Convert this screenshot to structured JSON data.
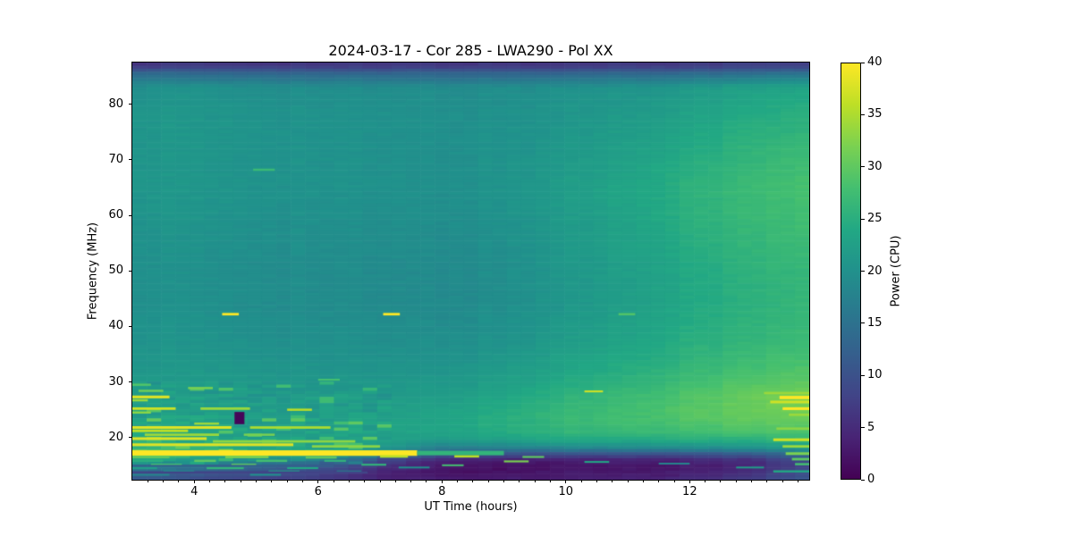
{
  "chart_data": {
    "type": "heatmap",
    "title": "2024-03-17 - Cor 285 - LWA290 - Pol XX",
    "xlabel": "UT Time (hours)",
    "ylabel": "Frequency (MHz)",
    "colorbar_label": "Power (CPU)",
    "x_range": [
      3.0,
      13.93
    ],
    "y_range": [
      12.4,
      87.5
    ],
    "clim": [
      0,
      40
    ],
    "x_ticks": [
      4,
      6,
      8,
      10,
      12
    ],
    "x_minor_step": 0.25,
    "y_ticks": [
      20,
      30,
      40,
      50,
      60,
      70,
      80
    ],
    "colorbar_ticks": [
      0,
      5,
      10,
      15,
      20,
      25,
      30,
      35,
      40
    ],
    "colormap": "viridis",
    "colormap_stops": [
      {
        "v": 0.0,
        "c": "#440154"
      },
      {
        "v": 0.1,
        "c": "#482475"
      },
      {
        "v": 0.2,
        "c": "#414487"
      },
      {
        "v": 0.3,
        "c": "#355f8d"
      },
      {
        "v": 0.4,
        "c": "#2a788e"
      },
      {
        "v": 0.5,
        "c": "#21918c"
      },
      {
        "v": 0.6,
        "c": "#22a884"
      },
      {
        "v": 0.7,
        "c": "#44bf70"
      },
      {
        "v": 0.8,
        "c": "#7ad151"
      },
      {
        "v": 0.9,
        "c": "#bddf26"
      },
      {
        "v": 1.0,
        "c": "#fde725"
      }
    ],
    "grid": {
      "times": [
        3,
        3.5,
        4,
        5,
        6,
        7,
        8,
        9,
        10,
        11,
        12,
        13,
        13.93
      ],
      "freqs": [
        87.6,
        86.8,
        85.5,
        83,
        78,
        72,
        65,
        58,
        50,
        44,
        38,
        33,
        30,
        27.5,
        25,
        23,
        21,
        19.5,
        18,
        17,
        16,
        15.2,
        14.3,
        13.5,
        12.4
      ],
      "power": [
        [
          6,
          6,
          6,
          6,
          6,
          6,
          6,
          6,
          6,
          6.5,
          6.5,
          7,
          7
        ],
        [
          7,
          7,
          7,
          7,
          7,
          7,
          7,
          7,
          7,
          7.5,
          7.5,
          8,
          8
        ],
        [
          14,
          14,
          13.5,
          13.5,
          13,
          13,
          13,
          13,
          13,
          13.5,
          14,
          14.5,
          15
        ],
        [
          20,
          20,
          20,
          19.8,
          19.5,
          19.3,
          19.3,
          19.5,
          20,
          20.5,
          21.5,
          22.5,
          23.5
        ],
        [
          21,
          21,
          20.8,
          20.5,
          20.2,
          20,
          19.8,
          20,
          20.8,
          21.5,
          23,
          24.2,
          25.2
        ],
        [
          21,
          21,
          20.8,
          20.5,
          20.2,
          20,
          19.8,
          20.2,
          21.2,
          22.5,
          24.2,
          25.8,
          27
        ],
        [
          21,
          21,
          20.8,
          20.5,
          20.2,
          20,
          19.8,
          20.5,
          22,
          23.5,
          25.5,
          27,
          28.2
        ],
        [
          20.5,
          20.5,
          20.3,
          20,
          19.8,
          19.5,
          19.4,
          20,
          21.5,
          23,
          25,
          26.5,
          27.6
        ],
        [
          20,
          20,
          19.8,
          19.5,
          19.3,
          19,
          19,
          19.5,
          21,
          22.3,
          24,
          25.5,
          26.5
        ],
        [
          20,
          20,
          19.8,
          19.5,
          19.3,
          19,
          19,
          19.5,
          21,
          22.3,
          24,
          25.3,
          26.3
        ],
        [
          20.5,
          20.5,
          20.3,
          20,
          19.8,
          19.5,
          19.5,
          20.2,
          21.8,
          23,
          24.8,
          26,
          27
        ],
        [
          21,
          21,
          21,
          20.8,
          20.5,
          20.3,
          20.5,
          21.5,
          23,
          24.5,
          26.2,
          27.5,
          28.5
        ],
        [
          21.5,
          21.5,
          21.5,
          21.3,
          21,
          21,
          21.2,
          22.5,
          24.2,
          25.8,
          27.5,
          29,
          30
        ],
        [
          22,
          22,
          22,
          21.8,
          21.5,
          21.5,
          22,
          23.5,
          25.5,
          27,
          28.8,
          30.5,
          32
        ],
        [
          22.5,
          22.5,
          22.5,
          22.3,
          22,
          22,
          22.8,
          24.5,
          26.5,
          27.8,
          29.3,
          30.8,
          31.5
        ],
        [
          23,
          23,
          23,
          22.8,
          22.5,
          22.5,
          23.2,
          25,
          26.5,
          27.8,
          29,
          30,
          30.5
        ],
        [
          23.5,
          23.5,
          23.5,
          23,
          22.8,
          22.8,
          23.2,
          24.5,
          26,
          26.8,
          27.5,
          28.3,
          28.8
        ],
        [
          25,
          25,
          24,
          23.5,
          23,
          22.5,
          22,
          23,
          24,
          24.5,
          25,
          25.5,
          26
        ],
        [
          28,
          27,
          26,
          25,
          24,
          21,
          17,
          17,
          18,
          18.5,
          19,
          19.5,
          21
        ],
        [
          30,
          28,
          27,
          26,
          25,
          18,
          11,
          10,
          10,
          10,
          10.5,
          11.5,
          14
        ],
        [
          24,
          23,
          22,
          20,
          18,
          10,
          5,
          4,
          4,
          4.5,
          5,
          6,
          10
        ],
        [
          20,
          19,
          18,
          16,
          13,
          7,
          3,
          2.5,
          2.5,
          3,
          3.5,
          4.5,
          8
        ],
        [
          16,
          15,
          14,
          12,
          10,
          5,
          2.5,
          2,
          2.5,
          3,
          3.5,
          5,
          9
        ],
        [
          13,
          12,
          11,
          10,
          8,
          4,
          2.5,
          2.5,
          3,
          3.5,
          4,
          6,
          10
        ],
        [
          11,
          10,
          9,
          8,
          7,
          4,
          3,
          3,
          3.5,
          4,
          5,
          7,
          11
        ]
      ]
    },
    "streaks": [
      [
        3.0,
        7.6,
        17.2,
        1.0,
        40
      ],
      [
        7.6,
        9.0,
        17.2,
        0.8,
        26
      ],
      [
        3.0,
        3.6,
        27.3,
        0.5,
        38
      ],
      [
        3.0,
        3.25,
        26.7,
        0.4,
        34
      ],
      [
        3.0,
        3.7,
        25.2,
        0.45,
        37
      ],
      [
        4.1,
        4.9,
        25.2,
        0.45,
        34
      ],
      [
        5.5,
        5.9,
        25.0,
        0.4,
        36
      ],
      [
        3.0,
        3.3,
        24.5,
        0.4,
        33
      ],
      [
        3.1,
        3.5,
        28.4,
        0.4,
        31
      ],
      [
        3.0,
        3.3,
        29.5,
        0.4,
        29
      ],
      [
        3.9,
        4.3,
        28.9,
        0.4,
        32
      ],
      [
        6.0,
        6.35,
        30.4,
        0.35,
        28
      ],
      [
        3.0,
        4.6,
        21.8,
        0.5,
        38
      ],
      [
        4.9,
        6.2,
        21.8,
        0.45,
        35
      ],
      [
        3.0,
        3.9,
        21.2,
        0.45,
        36
      ],
      [
        3.2,
        4.4,
        20.5,
        0.45,
        34
      ],
      [
        4.8,
        5.3,
        20.5,
        0.4,
        32
      ],
      [
        4.0,
        4.4,
        22.5,
        0.4,
        34
      ],
      [
        3.0,
        4.2,
        19.8,
        0.5,
        38
      ],
      [
        4.3,
        6.6,
        19.3,
        0.45,
        33
      ],
      [
        3.0,
        5.6,
        18.7,
        0.5,
        38
      ],
      [
        5.9,
        7.0,
        18.4,
        0.45,
        33
      ],
      [
        3.0,
        3.6,
        16.5,
        0.5,
        30
      ],
      [
        4.5,
        5.2,
        16.5,
        0.45,
        32
      ],
      [
        5.8,
        6.3,
        16.4,
        0.4,
        30
      ],
      [
        7.0,
        7.45,
        16.6,
        0.45,
        36
      ],
      [
        8.2,
        8.6,
        16.6,
        0.4,
        36
      ],
      [
        9.3,
        9.65,
        16.5,
        0.35,
        30
      ],
      [
        3.0,
        3.5,
        15.8,
        0.4,
        25
      ],
      [
        4.0,
        4.35,
        15.8,
        0.4,
        30
      ],
      [
        5.0,
        5.5,
        15.8,
        0.4,
        28
      ],
      [
        6.1,
        6.45,
        15.8,
        0.35,
        26
      ],
      [
        9.0,
        9.4,
        15.7,
        0.35,
        32
      ],
      [
        10.3,
        10.7,
        15.6,
        0.3,
        24
      ],
      [
        3.3,
        3.8,
        15.1,
        0.4,
        28
      ],
      [
        4.6,
        5.0,
        15.1,
        0.4,
        30
      ],
      [
        6.7,
        7.1,
        15.1,
        0.35,
        26
      ],
      [
        8.0,
        8.35,
        15.0,
        0.3,
        28
      ],
      [
        11.5,
        12.0,
        15.3,
        0.3,
        18
      ],
      [
        3.0,
        3.4,
        14.5,
        0.4,
        22
      ],
      [
        4.2,
        4.8,
        14.5,
        0.4,
        26
      ],
      [
        5.5,
        6.0,
        14.5,
        0.35,
        24
      ],
      [
        7.3,
        7.8,
        14.6,
        0.3,
        20
      ],
      [
        12.75,
        13.2,
        14.6,
        0.3,
        22
      ],
      [
        3.5,
        4.0,
        13.9,
        0.35,
        20
      ],
      [
        5.2,
        5.7,
        13.9,
        0.35,
        22
      ],
      [
        6.3,
        6.7,
        13.9,
        0.3,
        18
      ],
      [
        13.35,
        13.93,
        13.9,
        0.4,
        24
      ],
      [
        3.0,
        3.6,
        13.3,
        0.35,
        18
      ],
      [
        4.9,
        5.4,
        13.3,
        0.35,
        20
      ],
      [
        3.0,
        6.8,
        13.7,
        0.4,
        8
      ],
      [
        3.0,
        6.0,
        14.9,
        0.35,
        12
      ],
      [
        4.45,
        4.72,
        42.2,
        0.45,
        40
      ],
      [
        7.05,
        7.32,
        42.2,
        0.45,
        40
      ],
      [
        10.85,
        11.12,
        42.2,
        0.4,
        29
      ],
      [
        4.95,
        5.3,
        68.2,
        0.4,
        27
      ],
      [
        10.3,
        10.6,
        28.3,
        0.35,
        37
      ],
      [
        13.2,
        13.93,
        28.0,
        0.4,
        34
      ],
      [
        13.45,
        13.93,
        27.2,
        0.6,
        40
      ],
      [
        13.3,
        13.93,
        26.4,
        0.5,
        37
      ],
      [
        13.5,
        13.93,
        25.2,
        0.5,
        40
      ],
      [
        13.6,
        13.93,
        24.1,
        0.45,
        34
      ],
      [
        13.4,
        13.93,
        21.6,
        0.45,
        33
      ],
      [
        13.35,
        13.93,
        19.6,
        0.5,
        37
      ],
      [
        13.5,
        13.93,
        18.4,
        0.45,
        34
      ],
      [
        13.55,
        13.93,
        17.1,
        0.5,
        32
      ],
      [
        13.65,
        13.93,
        16.1,
        0.45,
        30
      ],
      [
        13.7,
        13.93,
        15.2,
        0.4,
        28
      ]
    ],
    "blobs": [
      [
        4.65,
        4.81,
        22.4,
        24.6,
        0.5
      ]
    ]
  }
}
